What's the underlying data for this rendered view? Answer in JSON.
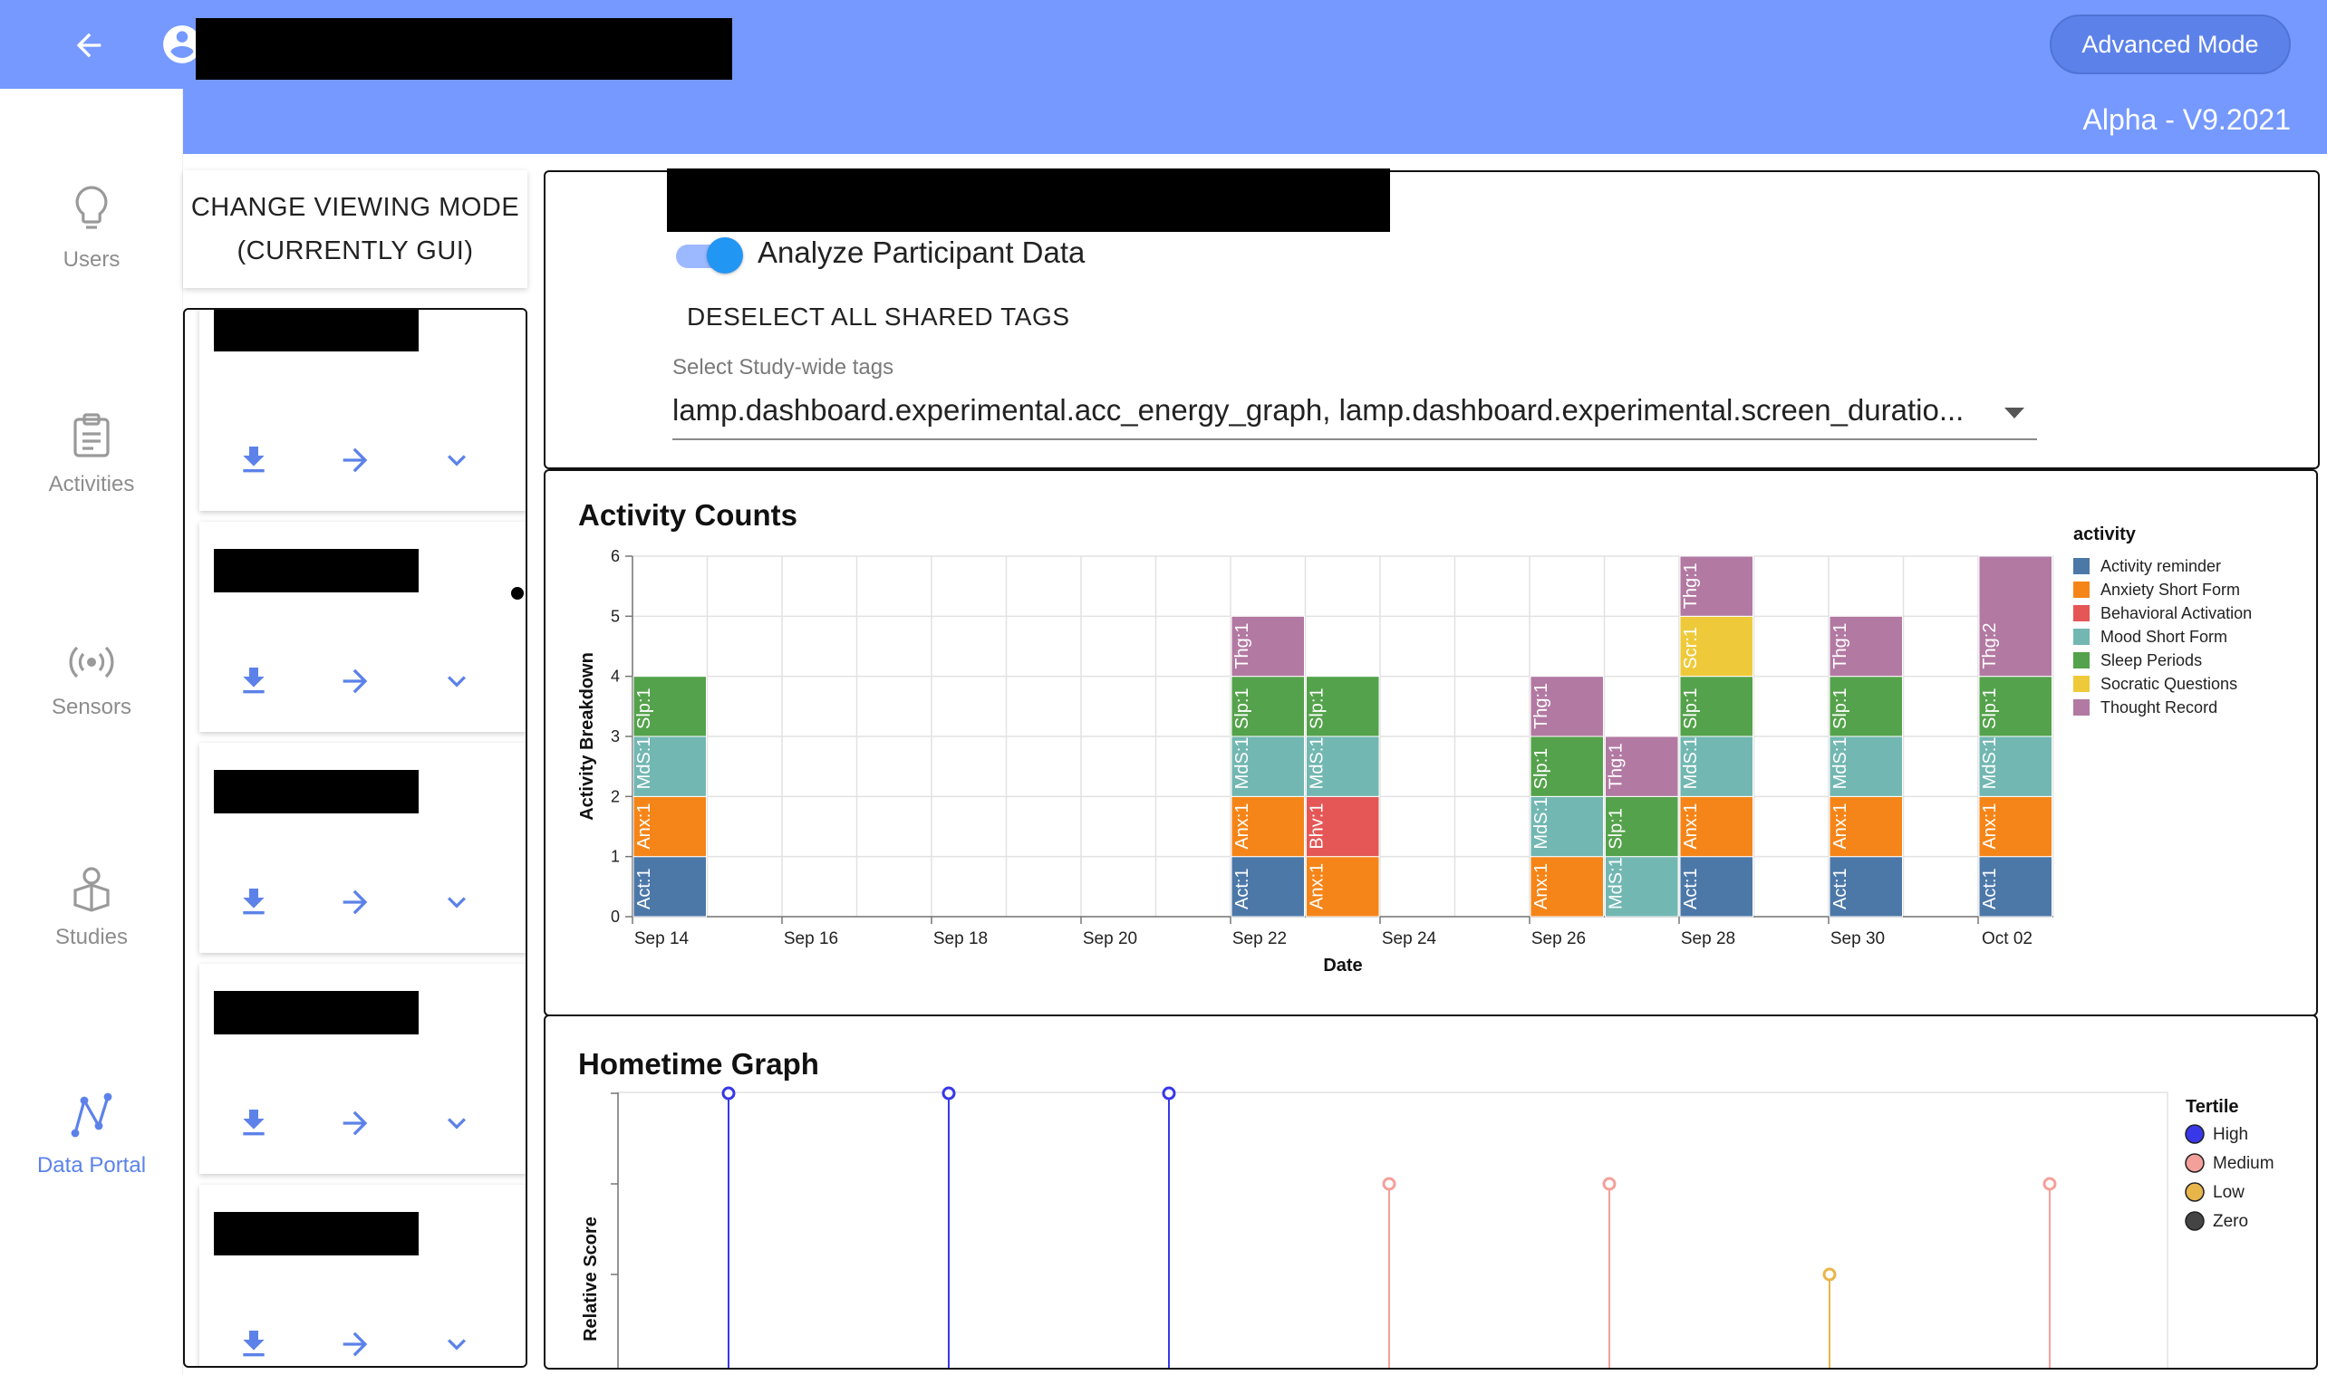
{
  "header": {
    "advanced_mode_label": "Advanced Mode",
    "version": "Alpha - V9.2021",
    "color": "#7599ff"
  },
  "sidebar": {
    "items": [
      {
        "label": "Users",
        "icon": "lightbulb-icon"
      },
      {
        "label": "Activities",
        "icon": "clipboard-icon"
      },
      {
        "label": "Sensors",
        "icon": "sensor-icon"
      },
      {
        "label": "Studies",
        "icon": "studies-icon"
      },
      {
        "label": "Data Portal",
        "icon": "data-portal-icon",
        "active": true
      }
    ],
    "accent": "#5c82e9"
  },
  "viewing_mode": {
    "line1": "CHANGE VIEWING MODE",
    "line2": "(CURRENTLY GUI)"
  },
  "participants": {
    "count": 5,
    "actions": [
      "download-icon",
      "arrow-right-icon",
      "chevron-down-icon"
    ]
  },
  "settings": {
    "toggle_label": "Analyze Participant Data",
    "toggle_on": true,
    "deselect_label": "DESELECT ALL SHARED TAGS",
    "tags_label": "Select Study-wide tags",
    "tags_value": "lamp.dashboard.experimental.acc_energy_graph, lamp.dashboard.experimental.screen_duratio..."
  },
  "activity_chart": {
    "title": "Activity Counts"
  },
  "hometime_chart": {
    "title": "Hometime Graph"
  },
  "chart_data": [
    {
      "type": "bar",
      "title": "Activity Counts",
      "xlabel": "Date",
      "ylabel": "Activity Breakdown",
      "ylim": [
        0,
        6
      ],
      "yticks": [
        "0",
        "1",
        "2",
        "3",
        "4",
        "5",
        "6"
      ],
      "x_tick_labels": [
        "Sep 14",
        "Sep 16",
        "Sep 18",
        "Sep 20",
        "Sep 22",
        "Sep 24",
        "Sep 26",
        "Sep 28",
        "Sep 30",
        "Oct 02"
      ],
      "x_start": "Sep 14",
      "grid": true,
      "legend_title": "activity",
      "legend_position": "right",
      "legend": [
        {
          "name": "Activity reminder",
          "color": "#4c78a8"
        },
        {
          "name": "Anxiety Short Form",
          "color": "#f58518"
        },
        {
          "name": "Behavioral Activation",
          "color": "#e45756"
        },
        {
          "name": "Mood Short Form",
          "color": "#72b7b2"
        },
        {
          "name": "Sleep Periods",
          "color": "#54a24b"
        },
        {
          "name": "Socratic Questions",
          "color": "#eeca3b"
        },
        {
          "name": "Thought Record",
          "color": "#b279a2"
        }
      ],
      "columns": [
        {
          "date": "Sep 14",
          "segments": [
            {
              "activity": "Activity reminder",
              "value": 1,
              "label": "Act:1"
            },
            {
              "activity": "Anxiety Short Form",
              "value": 1,
              "label": "Anx:1"
            },
            {
              "activity": "Mood Short Form",
              "value": 1,
              "label": "MdS:1"
            },
            {
              "activity": "Sleep Periods",
              "value": 1,
              "label": "Slp:1"
            }
          ]
        },
        {
          "date": "Sep 22",
          "segments": [
            {
              "activity": "Activity reminder",
              "value": 1,
              "label": "Act:1"
            },
            {
              "activity": "Anxiety Short Form",
              "value": 1,
              "label": "Anx:1"
            },
            {
              "activity": "Mood Short Form",
              "value": 1,
              "label": "MdS:1"
            },
            {
              "activity": "Sleep Periods",
              "value": 1,
              "label": "Slp:1"
            },
            {
              "activity": "Thought Record",
              "value": 1,
              "label": "Thg:1"
            }
          ]
        },
        {
          "date": "Sep 23",
          "segments": [
            {
              "activity": "Anxiety Short Form",
              "value": 1,
              "label": "Anx:1"
            },
            {
              "activity": "Behavioral Activation",
              "value": 1,
              "label": "Bhv:1"
            },
            {
              "activity": "Mood Short Form",
              "value": 1,
              "label": "MdS:1"
            },
            {
              "activity": "Sleep Periods",
              "value": 1,
              "label": "Slp:1"
            }
          ]
        },
        {
          "date": "Sep 26",
          "segments": [
            {
              "activity": "Anxiety Short Form",
              "value": 1,
              "label": "Anx:1"
            },
            {
              "activity": "Mood Short Form",
              "value": 1,
              "label": "MdS:1"
            },
            {
              "activity": "Sleep Periods",
              "value": 1,
              "label": "Slp:1"
            },
            {
              "activity": "Thought Record",
              "value": 1,
              "label": "Thg:1"
            }
          ]
        },
        {
          "date": "Sep 27",
          "segments": [
            {
              "activity": "Mood Short Form",
              "value": 1,
              "label": "MdS:1"
            },
            {
              "activity": "Sleep Periods",
              "value": 1,
              "label": "Slp:1"
            },
            {
              "activity": "Thought Record",
              "value": 1,
              "label": "Thg:1"
            }
          ]
        },
        {
          "date": "Sep 28",
          "segments": [
            {
              "activity": "Activity reminder",
              "value": 1,
              "label": "Act:1"
            },
            {
              "activity": "Anxiety Short Form",
              "value": 1,
              "label": "Anx:1"
            },
            {
              "activity": "Mood Short Form",
              "value": 1,
              "label": "MdS:1"
            },
            {
              "activity": "Sleep Periods",
              "value": 1,
              "label": "Slp:1"
            },
            {
              "activity": "Socratic Questions",
              "value": 1,
              "label": "Scr:1"
            },
            {
              "activity": "Thought Record",
              "value": 1,
              "label": "Thg:1"
            }
          ]
        },
        {
          "date": "Sep 30",
          "segments": [
            {
              "activity": "Activity reminder",
              "value": 1,
              "label": "Act:1"
            },
            {
              "activity": "Anxiety Short Form",
              "value": 1,
              "label": "Anx:1"
            },
            {
              "activity": "Mood Short Form",
              "value": 1,
              "label": "MdS:1"
            },
            {
              "activity": "Sleep Periods",
              "value": 1,
              "label": "Slp:1"
            },
            {
              "activity": "Thought Record",
              "value": 1,
              "label": "Thg:1"
            }
          ]
        },
        {
          "date": "Oct 02",
          "segments": [
            {
              "activity": "Activity reminder",
              "value": 1,
              "label": "Act:1"
            },
            {
              "activity": "Anxiety Short Form",
              "value": 1,
              "label": "Anx:1"
            },
            {
              "activity": "Mood Short Form",
              "value": 1,
              "label": "MdS:1"
            },
            {
              "activity": "Sleep Periods",
              "value": 1,
              "label": "Slp:1"
            },
            {
              "activity": "Thought Record",
              "value": 2,
              "label": "Thg:2"
            }
          ]
        }
      ]
    },
    {
      "type": "scatter",
      "subtype": "lollipop",
      "title": "Hometime Graph",
      "ylabel": "Relative Score",
      "ylim": [
        0,
        3
      ],
      "legend_title": "Tertile",
      "legend_position": "right",
      "legend": [
        {
          "name": "High",
          "color": "#3838e8"
        },
        {
          "name": "Medium",
          "color": "#f4a09a"
        },
        {
          "name": "Low",
          "color": "#e8b54a"
        },
        {
          "name": "Zero",
          "color": "#444444"
        }
      ],
      "points": [
        {
          "tertile": "High",
          "value": 2
        },
        {
          "tertile": "High",
          "value": 2
        },
        {
          "tertile": "High",
          "value": 2
        },
        {
          "tertile": "Medium",
          "value": 1
        },
        {
          "tertile": "Medium",
          "value": 1
        },
        {
          "tertile": "Low",
          "value": 0
        },
        {
          "tertile": "Medium",
          "value": 1
        }
      ]
    }
  ]
}
